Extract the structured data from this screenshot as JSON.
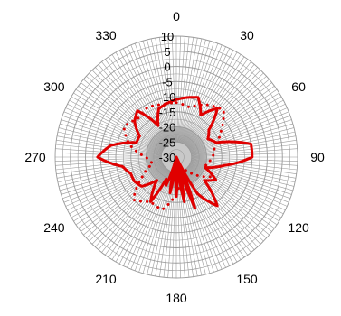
{
  "chart_data": {
    "type": "polar-line",
    "title": "",
    "angle_unit": "degrees",
    "angle_zero": "top",
    "angle_direction": "clockwise",
    "r_range": [
      -30,
      10
    ],
    "angle_tick_labels": [
      "0",
      "30",
      "60",
      "90",
      "120",
      "150",
      "180",
      "210",
      "240",
      "270",
      "300",
      "330"
    ],
    "radial_tick_labels": [
      "10",
      "5",
      "0",
      "-5",
      "-10",
      "-15",
      "-20",
      "-25",
      "-30"
    ],
    "grid": true,
    "line_color": "#e00000",
    "grid_color": "#9a9a9a",
    "inner_fill_color": "#c8c8c8",
    "series": [
      {
        "style": "solid",
        "angles": [
          0,
          10,
          20,
          30,
          40,
          50,
          60,
          70,
          80,
          90,
          100,
          110,
          120,
          130,
          140,
          150,
          155,
          160,
          165,
          170,
          175,
          180,
          185,
          190,
          195,
          200,
          205,
          210,
          220,
          230,
          240,
          250,
          260,
          270,
          280,
          290,
          300,
          310,
          320,
          330,
          340,
          350
        ],
        "values": [
          -11,
          -10,
          -9,
          -14,
          -9,
          -16,
          -18,
          -16,
          -5,
          -5,
          -14,
          -20,
          -15,
          -18,
          -9,
          -16,
          -30,
          -12,
          -30,
          -15,
          -30,
          -17,
          -30,
          -18,
          -29,
          -20,
          -22,
          -13,
          -20,
          -15,
          -14,
          -14,
          -12,
          -4,
          -8,
          -16,
          -16,
          -12,
          -10,
          -18,
          -13,
          -12
        ]
      },
      {
        "style": "dotted",
        "angles": [
          0,
          15,
          30,
          45,
          60,
          75,
          90,
          105,
          120,
          135,
          150,
          165,
          180,
          195,
          210,
          225,
          240,
          255,
          270,
          285,
          300,
          315,
          330,
          345
        ],
        "values": [
          -12,
          -13,
          -10,
          -8,
          -13,
          -17,
          -18,
          -20,
          -17,
          -22,
          -26,
          -24,
          -18,
          -12,
          -13,
          -10,
          -17,
          -22,
          -20,
          -14,
          -10,
          -12,
          -11,
          -12
        ]
      }
    ]
  }
}
